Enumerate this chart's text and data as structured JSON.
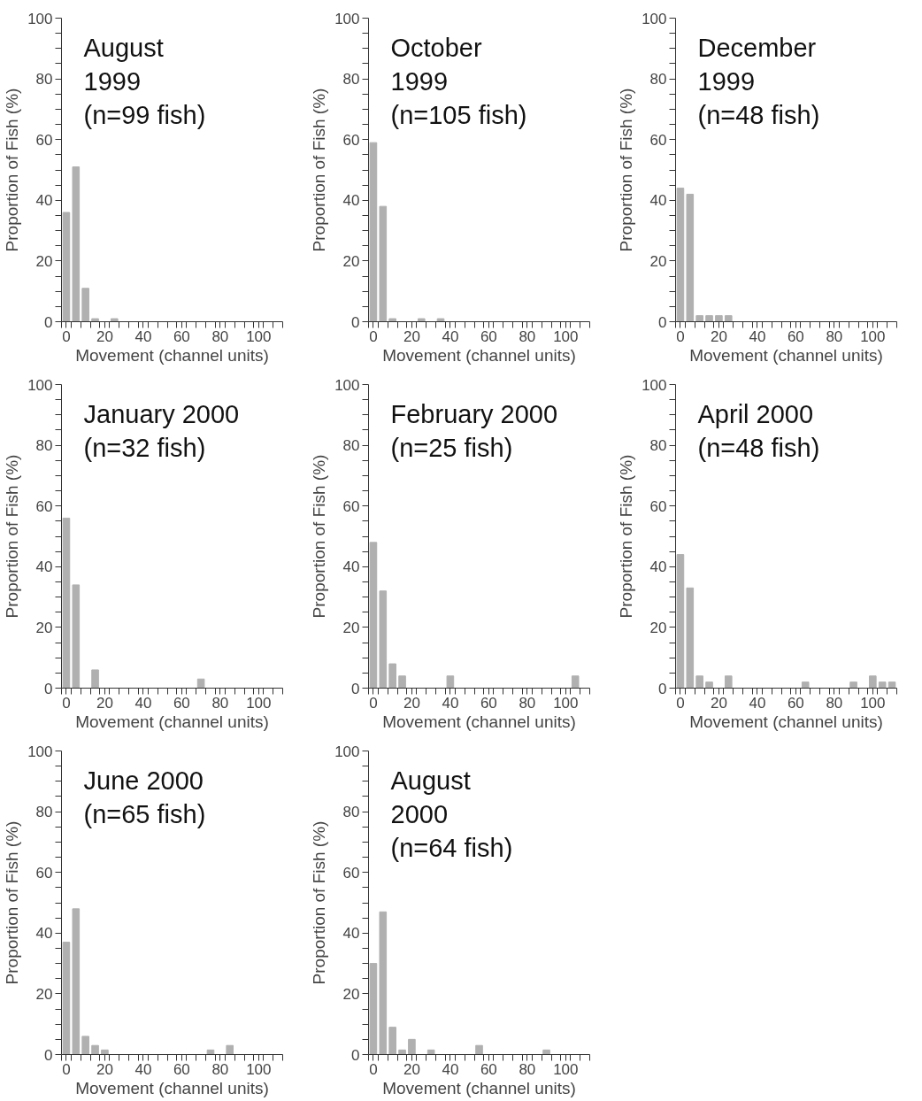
{
  "chart_data": [
    {
      "type": "histogram",
      "title": "August\n1999\n(n=99 fish)",
      "xlabel": "Movement (channel units)",
      "ylabel": "Proportion of Fish (%)",
      "bins": [
        -2.5,
        2.5,
        7.5,
        12.5,
        17.5,
        22.5,
        27.5,
        32.5,
        37.5,
        42.5,
        47.5,
        52.5,
        57.5,
        62.5,
        67.5,
        72.5,
        77.5,
        82.5,
        87.5,
        92.5,
        97.5,
        102.5,
        107.5,
        112.5
      ],
      "values": [
        36,
        51,
        11,
        1,
        0,
        1,
        0,
        0,
        0,
        0,
        0,
        0,
        0,
        0,
        0,
        0,
        0,
        0,
        0,
        0,
        0,
        0,
        0
      ],
      "color": "#b0b0b0",
      "xlim": [
        -2.5,
        112.5
      ],
      "ylim": [
        0,
        100
      ],
      "xticks": [
        0,
        20,
        40,
        60,
        80,
        100,
        {
          "value": -2.5,
          "label": null
        },
        {
          "value": 2.5,
          "label": null
        },
        {
          "value": 7.5,
          "label": null
        },
        {
          "value": 12.5,
          "label": null
        },
        {
          "value": 17.5,
          "label": null
        },
        {
          "value": 22.5,
          "label": null
        },
        {
          "value": 27.5,
          "label": null
        },
        {
          "value": 32.5,
          "label": null
        },
        {
          "value": 37.5,
          "label": null
        },
        {
          "value": 42.5,
          "label": null
        },
        {
          "value": 47.5,
          "label": null
        },
        {
          "value": 52.5,
          "label": null
        },
        {
          "value": 57.5,
          "label": null
        },
        {
          "value": 62.5,
          "label": null
        },
        {
          "value": 67.5,
          "label": null
        },
        {
          "value": 72.5,
          "label": null
        },
        {
          "value": 77.5,
          "label": null
        },
        {
          "value": 82.5,
          "label": null
        },
        {
          "value": 87.5,
          "label": null
        },
        {
          "value": 92.5,
          "label": null
        },
        {
          "value": 97.5,
          "label": null
        },
        {
          "value": 102.5,
          "label": null
        },
        {
          "value": 107.5,
          "label": null
        },
        {
          "value": 112.5,
          "label": null
        }
      ],
      "yticks": [
        0,
        20,
        40,
        60,
        80,
        100,
        {
          "value": 5,
          "label": null
        },
        {
          "value": 10,
          "label": null
        },
        {
          "value": 15,
          "label": null
        },
        {
          "value": 25,
          "label": null
        },
        {
          "value": 30,
          "label": null
        },
        {
          "value": 35,
          "label": null
        },
        {
          "value": 45,
          "label": null
        },
        {
          "value": 50,
          "label": null
        },
        {
          "value": 55,
          "label": null
        },
        {
          "value": 65,
          "label": null
        },
        {
          "value": 70,
          "label": null
        },
        {
          "value": 75,
          "label": null
        },
        {
          "value": 85,
          "label": null
        },
        {
          "value": 90,
          "label": null
        },
        {
          "value": 95,
          "label": null
        }
      ],
      "grid": false
    },
    {
      "type": "histogram",
      "title": "October\n1999\n(n=105 fish)",
      "xlabel": "Movement (channel units)",
      "ylabel": "Proportion of Fish (%)",
      "bins": [
        -2.5,
        2.5,
        7.5,
        12.5,
        17.5,
        22.5,
        27.5,
        32.5,
        37.5,
        42.5,
        47.5,
        52.5,
        57.5,
        62.5,
        67.5,
        72.5,
        77.5,
        82.5,
        87.5,
        92.5,
        97.5,
        102.5,
        107.5,
        112.5
      ],
      "values": [
        59,
        38,
        1,
        0,
        0,
        1,
        0,
        1,
        0,
        0,
        0,
        0,
        0,
        0,
        0,
        0,
        0,
        0,
        0,
        0,
        0,
        0,
        0
      ],
      "color": "#b0b0b0",
      "xlim": [
        -2.5,
        112.5
      ],
      "ylim": [
        0,
        100
      ],
      "xticks": [
        0,
        20,
        40,
        60,
        80,
        100,
        {
          "value": -2.5,
          "label": null
        },
        {
          "value": 2.5,
          "label": null
        },
        {
          "value": 7.5,
          "label": null
        },
        {
          "value": 12.5,
          "label": null
        },
        {
          "value": 17.5,
          "label": null
        },
        {
          "value": 22.5,
          "label": null
        },
        {
          "value": 27.5,
          "label": null
        },
        {
          "value": 32.5,
          "label": null
        },
        {
          "value": 37.5,
          "label": null
        },
        {
          "value": 42.5,
          "label": null
        },
        {
          "value": 47.5,
          "label": null
        },
        {
          "value": 52.5,
          "label": null
        },
        {
          "value": 57.5,
          "label": null
        },
        {
          "value": 62.5,
          "label": null
        },
        {
          "value": 67.5,
          "label": null
        },
        {
          "value": 72.5,
          "label": null
        },
        {
          "value": 77.5,
          "label": null
        },
        {
          "value": 82.5,
          "label": null
        },
        {
          "value": 87.5,
          "label": null
        },
        {
          "value": 92.5,
          "label": null
        },
        {
          "value": 97.5,
          "label": null
        },
        {
          "value": 102.5,
          "label": null
        },
        {
          "value": 107.5,
          "label": null
        },
        {
          "value": 112.5,
          "label": null
        }
      ],
      "yticks": [
        0,
        20,
        40,
        60,
        80,
        100,
        {
          "value": 5,
          "label": null
        },
        {
          "value": 10,
          "label": null
        },
        {
          "value": 15,
          "label": null
        },
        {
          "value": 25,
          "label": null
        },
        {
          "value": 30,
          "label": null
        },
        {
          "value": 35,
          "label": null
        },
        {
          "value": 45,
          "label": null
        },
        {
          "value": 50,
          "label": null
        },
        {
          "value": 55,
          "label": null
        },
        {
          "value": 65,
          "label": null
        },
        {
          "value": 70,
          "label": null
        },
        {
          "value": 75,
          "label": null
        },
        {
          "value": 85,
          "label": null
        },
        {
          "value": 90,
          "label": null
        },
        {
          "value": 95,
          "label": null
        }
      ],
      "grid": false
    },
    {
      "type": "histogram",
      "title": "December\n1999\n(n=48 fish)",
      "xlabel": "Movement (channel units)",
      "ylabel": "Proportion of Fish (%)",
      "bins": [
        -2.5,
        2.5,
        7.5,
        12.5,
        17.5,
        22.5,
        27.5,
        32.5,
        37.5,
        42.5,
        47.5,
        52.5,
        57.5,
        62.5,
        67.5,
        72.5,
        77.5,
        82.5,
        87.5,
        92.5,
        97.5,
        102.5,
        107.5,
        112.5
      ],
      "values": [
        44,
        42,
        2,
        2,
        2,
        2,
        0,
        0,
        0,
        0,
        0,
        0,
        0,
        0,
        0,
        0,
        0,
        0,
        0,
        0,
        0,
        0,
        0
      ],
      "color": "#b0b0b0",
      "xlim": [
        -2.5,
        112.5
      ],
      "ylim": [
        0,
        100
      ],
      "xticks": [
        0,
        20,
        40,
        60,
        80,
        100,
        {
          "value": -2.5,
          "label": null
        },
        {
          "value": 2.5,
          "label": null
        },
        {
          "value": 7.5,
          "label": null
        },
        {
          "value": 12.5,
          "label": null
        },
        {
          "value": 17.5,
          "label": null
        },
        {
          "value": 22.5,
          "label": null
        },
        {
          "value": 27.5,
          "label": null
        },
        {
          "value": 32.5,
          "label": null
        },
        {
          "value": 37.5,
          "label": null
        },
        {
          "value": 42.5,
          "label": null
        },
        {
          "value": 47.5,
          "label": null
        },
        {
          "value": 52.5,
          "label": null
        },
        {
          "value": 57.5,
          "label": null
        },
        {
          "value": 62.5,
          "label": null
        },
        {
          "value": 67.5,
          "label": null
        },
        {
          "value": 72.5,
          "label": null
        },
        {
          "value": 77.5,
          "label": null
        },
        {
          "value": 82.5,
          "label": null
        },
        {
          "value": 87.5,
          "label": null
        },
        {
          "value": 92.5,
          "label": null
        },
        {
          "value": 97.5,
          "label": null
        },
        {
          "value": 102.5,
          "label": null
        },
        {
          "value": 107.5,
          "label": null
        },
        {
          "value": 112.5,
          "label": null
        }
      ],
      "yticks": [
        0,
        20,
        40,
        60,
        80,
        100,
        {
          "value": 5,
          "label": null
        },
        {
          "value": 10,
          "label": null
        },
        {
          "value": 15,
          "label": null
        },
        {
          "value": 25,
          "label": null
        },
        {
          "value": 30,
          "label": null
        },
        {
          "value": 35,
          "label": null
        },
        {
          "value": 45,
          "label": null
        },
        {
          "value": 50,
          "label": null
        },
        {
          "value": 55,
          "label": null
        },
        {
          "value": 65,
          "label": null
        },
        {
          "value": 70,
          "label": null
        },
        {
          "value": 75,
          "label": null
        },
        {
          "value": 85,
          "label": null
        },
        {
          "value": 90,
          "label": null
        },
        {
          "value": 95,
          "label": null
        }
      ],
      "grid": false
    },
    {
      "type": "histogram",
      "title": "January 2000\n(n=32 fish)",
      "xlabel": "Movement (channel units)",
      "ylabel": "Proportion of Fish (%)",
      "bins": [
        -2.5,
        2.5,
        7.5,
        12.5,
        17.5,
        22.5,
        27.5,
        32.5,
        37.5,
        42.5,
        47.5,
        52.5,
        57.5,
        62.5,
        67.5,
        72.5,
        77.5,
        82.5,
        87.5,
        92.5,
        97.5,
        102.5,
        107.5,
        112.5
      ],
      "values": [
        56,
        34,
        0,
        6,
        0,
        0,
        0,
        0,
        0,
        0,
        0,
        0,
        0,
        0,
        3,
        0,
        0,
        0,
        0,
        0,
        0,
        0,
        0
      ],
      "color": "#b0b0b0",
      "xlim": [
        -2.5,
        112.5
      ],
      "ylim": [
        0,
        100
      ],
      "xticks": [
        0,
        20,
        40,
        60,
        80,
        100,
        {
          "value": -2.5,
          "label": null
        },
        {
          "value": 2.5,
          "label": null
        },
        {
          "value": 7.5,
          "label": null
        },
        {
          "value": 12.5,
          "label": null
        },
        {
          "value": 17.5,
          "label": null
        },
        {
          "value": 22.5,
          "label": null
        },
        {
          "value": 27.5,
          "label": null
        },
        {
          "value": 32.5,
          "label": null
        },
        {
          "value": 37.5,
          "label": null
        },
        {
          "value": 42.5,
          "label": null
        },
        {
          "value": 47.5,
          "label": null
        },
        {
          "value": 52.5,
          "label": null
        },
        {
          "value": 57.5,
          "label": null
        },
        {
          "value": 62.5,
          "label": null
        },
        {
          "value": 67.5,
          "label": null
        },
        {
          "value": 72.5,
          "label": null
        },
        {
          "value": 77.5,
          "label": null
        },
        {
          "value": 82.5,
          "label": null
        },
        {
          "value": 87.5,
          "label": null
        },
        {
          "value": 92.5,
          "label": null
        },
        {
          "value": 97.5,
          "label": null
        },
        {
          "value": 102.5,
          "label": null
        },
        {
          "value": 107.5,
          "label": null
        },
        {
          "value": 112.5,
          "label": null
        }
      ],
      "yticks": [
        0,
        20,
        40,
        60,
        80,
        100,
        {
          "value": 5,
          "label": null
        },
        {
          "value": 10,
          "label": null
        },
        {
          "value": 15,
          "label": null
        },
        {
          "value": 25,
          "label": null
        },
        {
          "value": 30,
          "label": null
        },
        {
          "value": 35,
          "label": null
        },
        {
          "value": 45,
          "label": null
        },
        {
          "value": 50,
          "label": null
        },
        {
          "value": 55,
          "label": null
        },
        {
          "value": 65,
          "label": null
        },
        {
          "value": 70,
          "label": null
        },
        {
          "value": 75,
          "label": null
        },
        {
          "value": 85,
          "label": null
        },
        {
          "value": 90,
          "label": null
        },
        {
          "value": 95,
          "label": null
        }
      ],
      "grid": false
    },
    {
      "type": "histogram",
      "title": "February 2000\n(n=25 fish)",
      "xlabel": "Movement (channel units)",
      "ylabel": "Proportion of Fish (%)",
      "bins": [
        -2.5,
        2.5,
        7.5,
        12.5,
        17.5,
        22.5,
        27.5,
        32.5,
        37.5,
        42.5,
        47.5,
        52.5,
        57.5,
        62.5,
        67.5,
        72.5,
        77.5,
        82.5,
        87.5,
        92.5,
        97.5,
        102.5,
        107.5,
        112.5
      ],
      "values": [
        48,
        32,
        8,
        4,
        0,
        0,
        0,
        0,
        4,
        0,
        0,
        0,
        0,
        0,
        0,
        0,
        0,
        0,
        0,
        0,
        0,
        4,
        0
      ],
      "color": "#b0b0b0",
      "xlim": [
        -2.5,
        112.5
      ],
      "ylim": [
        0,
        100
      ],
      "xticks": [
        0,
        20,
        40,
        60,
        80,
        100,
        {
          "value": -2.5,
          "label": null
        },
        {
          "value": 2.5,
          "label": null
        },
        {
          "value": 7.5,
          "label": null
        },
        {
          "value": 12.5,
          "label": null
        },
        {
          "value": 17.5,
          "label": null
        },
        {
          "value": 22.5,
          "label": null
        },
        {
          "value": 27.5,
          "label": null
        },
        {
          "value": 32.5,
          "label": null
        },
        {
          "value": 37.5,
          "label": null
        },
        {
          "value": 42.5,
          "label": null
        },
        {
          "value": 47.5,
          "label": null
        },
        {
          "value": 52.5,
          "label": null
        },
        {
          "value": 57.5,
          "label": null
        },
        {
          "value": 62.5,
          "label": null
        },
        {
          "value": 67.5,
          "label": null
        },
        {
          "value": 72.5,
          "label": null
        },
        {
          "value": 77.5,
          "label": null
        },
        {
          "value": 82.5,
          "label": null
        },
        {
          "value": 87.5,
          "label": null
        },
        {
          "value": 92.5,
          "label": null
        },
        {
          "value": 97.5,
          "label": null
        },
        {
          "value": 102.5,
          "label": null
        },
        {
          "value": 107.5,
          "label": null
        },
        {
          "value": 112.5,
          "label": null
        }
      ],
      "yticks": [
        0,
        20,
        40,
        60,
        80,
        100,
        {
          "value": 5,
          "label": null
        },
        {
          "value": 10,
          "label": null
        },
        {
          "value": 15,
          "label": null
        },
        {
          "value": 25,
          "label": null
        },
        {
          "value": 30,
          "label": null
        },
        {
          "value": 35,
          "label": null
        },
        {
          "value": 45,
          "label": null
        },
        {
          "value": 50,
          "label": null
        },
        {
          "value": 55,
          "label": null
        },
        {
          "value": 65,
          "label": null
        },
        {
          "value": 70,
          "label": null
        },
        {
          "value": 75,
          "label": null
        },
        {
          "value": 85,
          "label": null
        },
        {
          "value": 90,
          "label": null
        },
        {
          "value": 95,
          "label": null
        }
      ],
      "grid": false
    },
    {
      "type": "histogram",
      "title": "April 2000\n(n=48 fish)",
      "xlabel": "Movement (channel units)",
      "ylabel": "Proportion of Fish (%)",
      "bins": [
        -2.5,
        2.5,
        7.5,
        12.5,
        17.5,
        22.5,
        27.5,
        32.5,
        37.5,
        42.5,
        47.5,
        52.5,
        57.5,
        62.5,
        67.5,
        72.5,
        77.5,
        82.5,
        87.5,
        92.5,
        97.5,
        102.5,
        107.5,
        112.5
      ],
      "values": [
        44,
        33,
        4,
        2,
        0,
        4,
        0,
        0,
        0,
        0,
        0,
        0,
        0,
        2,
        0,
        0,
        0,
        0,
        2,
        0,
        4,
        2,
        2
      ],
      "color": "#b0b0b0",
      "xlim": [
        -2.5,
        112.5
      ],
      "ylim": [
        0,
        100
      ],
      "xticks": [
        0,
        20,
        40,
        60,
        80,
        100,
        {
          "value": -2.5,
          "label": null
        },
        {
          "value": 2.5,
          "label": null
        },
        {
          "value": 7.5,
          "label": null
        },
        {
          "value": 12.5,
          "label": null
        },
        {
          "value": 17.5,
          "label": null
        },
        {
          "value": 22.5,
          "label": null
        },
        {
          "value": 27.5,
          "label": null
        },
        {
          "value": 32.5,
          "label": null
        },
        {
          "value": 37.5,
          "label": null
        },
        {
          "value": 42.5,
          "label": null
        },
        {
          "value": 47.5,
          "label": null
        },
        {
          "value": 52.5,
          "label": null
        },
        {
          "value": 57.5,
          "label": null
        },
        {
          "value": 62.5,
          "label": null
        },
        {
          "value": 67.5,
          "label": null
        },
        {
          "value": 72.5,
          "label": null
        },
        {
          "value": 77.5,
          "label": null
        },
        {
          "value": 82.5,
          "label": null
        },
        {
          "value": 87.5,
          "label": null
        },
        {
          "value": 92.5,
          "label": null
        },
        {
          "value": 97.5,
          "label": null
        },
        {
          "value": 102.5,
          "label": null
        },
        {
          "value": 107.5,
          "label": null
        },
        {
          "value": 112.5,
          "label": null
        }
      ],
      "yticks": [
        0,
        20,
        40,
        60,
        80,
        100,
        {
          "value": 5,
          "label": null
        },
        {
          "value": 10,
          "label": null
        },
        {
          "value": 15,
          "label": null
        },
        {
          "value": 25,
          "label": null
        },
        {
          "value": 30,
          "label": null
        },
        {
          "value": 35,
          "label": null
        },
        {
          "value": 45,
          "label": null
        },
        {
          "value": 50,
          "label": null
        },
        {
          "value": 55,
          "label": null
        },
        {
          "value": 65,
          "label": null
        },
        {
          "value": 70,
          "label": null
        },
        {
          "value": 75,
          "label": null
        },
        {
          "value": 85,
          "label": null
        },
        {
          "value": 90,
          "label": null
        },
        {
          "value": 95,
          "label": null
        }
      ],
      "grid": false
    },
    {
      "type": "histogram",
      "title": "June 2000\n(n=65 fish)",
      "xlabel": "Movement (channel units)",
      "ylabel": "Proportion of Fish (%)",
      "bins": [
        -2.5,
        2.5,
        7.5,
        12.5,
        17.5,
        22.5,
        27.5,
        32.5,
        37.5,
        42.5,
        47.5,
        52.5,
        57.5,
        62.5,
        67.5,
        72.5,
        77.5,
        82.5,
        87.5,
        92.5,
        97.5,
        102.5,
        107.5,
        112.5
      ],
      "values": [
        37,
        48,
        6,
        3,
        1.5,
        0,
        0,
        0,
        0,
        0,
        0,
        0,
        0,
        0,
        0,
        1.5,
        0,
        3,
        0,
        0,
        0,
        0,
        0
      ],
      "color": "#b0b0b0",
      "xlim": [
        -2.5,
        112.5
      ],
      "ylim": [
        0,
        100
      ],
      "xticks": [
        0,
        20,
        40,
        60,
        80,
        100,
        {
          "value": -2.5,
          "label": null
        },
        {
          "value": 2.5,
          "label": null
        },
        {
          "value": 7.5,
          "label": null
        },
        {
          "value": 12.5,
          "label": null
        },
        {
          "value": 17.5,
          "label": null
        },
        {
          "value": 22.5,
          "label": null
        },
        {
          "value": 27.5,
          "label": null
        },
        {
          "value": 32.5,
          "label": null
        },
        {
          "value": 37.5,
          "label": null
        },
        {
          "value": 42.5,
          "label": null
        },
        {
          "value": 47.5,
          "label": null
        },
        {
          "value": 52.5,
          "label": null
        },
        {
          "value": 57.5,
          "label": null
        },
        {
          "value": 62.5,
          "label": null
        },
        {
          "value": 67.5,
          "label": null
        },
        {
          "value": 72.5,
          "label": null
        },
        {
          "value": 77.5,
          "label": null
        },
        {
          "value": 82.5,
          "label": null
        },
        {
          "value": 87.5,
          "label": null
        },
        {
          "value": 92.5,
          "label": null
        },
        {
          "value": 97.5,
          "label": null
        },
        {
          "value": 102.5,
          "label": null
        },
        {
          "value": 107.5,
          "label": null
        },
        {
          "value": 112.5,
          "label": null
        }
      ],
      "yticks": [
        0,
        20,
        40,
        60,
        80,
        100,
        {
          "value": 5,
          "label": null
        },
        {
          "value": 10,
          "label": null
        },
        {
          "value": 15,
          "label": null
        },
        {
          "value": 25,
          "label": null
        },
        {
          "value": 30,
          "label": null
        },
        {
          "value": 35,
          "label": null
        },
        {
          "value": 45,
          "label": null
        },
        {
          "value": 50,
          "label": null
        },
        {
          "value": 55,
          "label": null
        },
        {
          "value": 65,
          "label": null
        },
        {
          "value": 70,
          "label": null
        },
        {
          "value": 75,
          "label": null
        },
        {
          "value": 85,
          "label": null
        },
        {
          "value": 90,
          "label": null
        },
        {
          "value": 95,
          "label": null
        }
      ],
      "grid": false
    },
    {
      "type": "histogram",
      "title": "August\n2000\n(n=64 fish)",
      "xlabel": "Movement (channel units)",
      "ylabel": "Proportion of Fish (%)",
      "bins": [
        -2.5,
        2.5,
        7.5,
        12.5,
        17.5,
        22.5,
        27.5,
        32.5,
        37.5,
        42.5,
        47.5,
        52.5,
        57.5,
        62.5,
        67.5,
        72.5,
        77.5,
        82.5,
        87.5,
        92.5,
        97.5,
        102.5,
        107.5,
        112.5
      ],
      "values": [
        30,
        47,
        9,
        1.5,
        5,
        0,
        1.5,
        0,
        0,
        0,
        0,
        3,
        0,
        0,
        0,
        0,
        0,
        0,
        1.5,
        0,
        0,
        0,
        0
      ],
      "color": "#b0b0b0",
      "xlim": [
        -2.5,
        112.5
      ],
      "ylim": [
        0,
        100
      ],
      "xticks": [
        0,
        20,
        40,
        60,
        80,
        100,
        {
          "value": -2.5,
          "label": null
        },
        {
          "value": 2.5,
          "label": null
        },
        {
          "value": 7.5,
          "label": null
        },
        {
          "value": 12.5,
          "label": null
        },
        {
          "value": 17.5,
          "label": null
        },
        {
          "value": 22.5,
          "label": null
        },
        {
          "value": 27.5,
          "label": null
        },
        {
          "value": 32.5,
          "label": null
        },
        {
          "value": 37.5,
          "label": null
        },
        {
          "value": 42.5,
          "label": null
        },
        {
          "value": 47.5,
          "label": null
        },
        {
          "value": 52.5,
          "label": null
        },
        {
          "value": 57.5,
          "label": null
        },
        {
          "value": 62.5,
          "label": null
        },
        {
          "value": 67.5,
          "label": null
        },
        {
          "value": 72.5,
          "label": null
        },
        {
          "value": 77.5,
          "label": null
        },
        {
          "value": 82.5,
          "label": null
        },
        {
          "value": 87.5,
          "label": null
        },
        {
          "value": 92.5,
          "label": null
        },
        {
          "value": 97.5,
          "label": null
        },
        {
          "value": 102.5,
          "label": null
        },
        {
          "value": 107.5,
          "label": null
        },
        {
          "value": 112.5,
          "label": null
        }
      ],
      "yticks": [
        0,
        20,
        40,
        60,
        80,
        100,
        {
          "value": 5,
          "label": null
        },
        {
          "value": 10,
          "label": null
        },
        {
          "value": 15,
          "label": null
        },
        {
          "value": 25,
          "label": null
        },
        {
          "value": 30,
          "label": null
        },
        {
          "value": 35,
          "label": null
        },
        {
          "value": 45,
          "label": null
        },
        {
          "value": 50,
          "label": null
        },
        {
          "value": 55,
          "label": null
        },
        {
          "value": 65,
          "label": null
        },
        {
          "value": 70,
          "label": null
        },
        {
          "value": 75,
          "label": null
        },
        {
          "value": 85,
          "label": null
        },
        {
          "value": 90,
          "label": null
        },
        {
          "value": 95,
          "label": null
        }
      ],
      "grid": false
    }
  ]
}
